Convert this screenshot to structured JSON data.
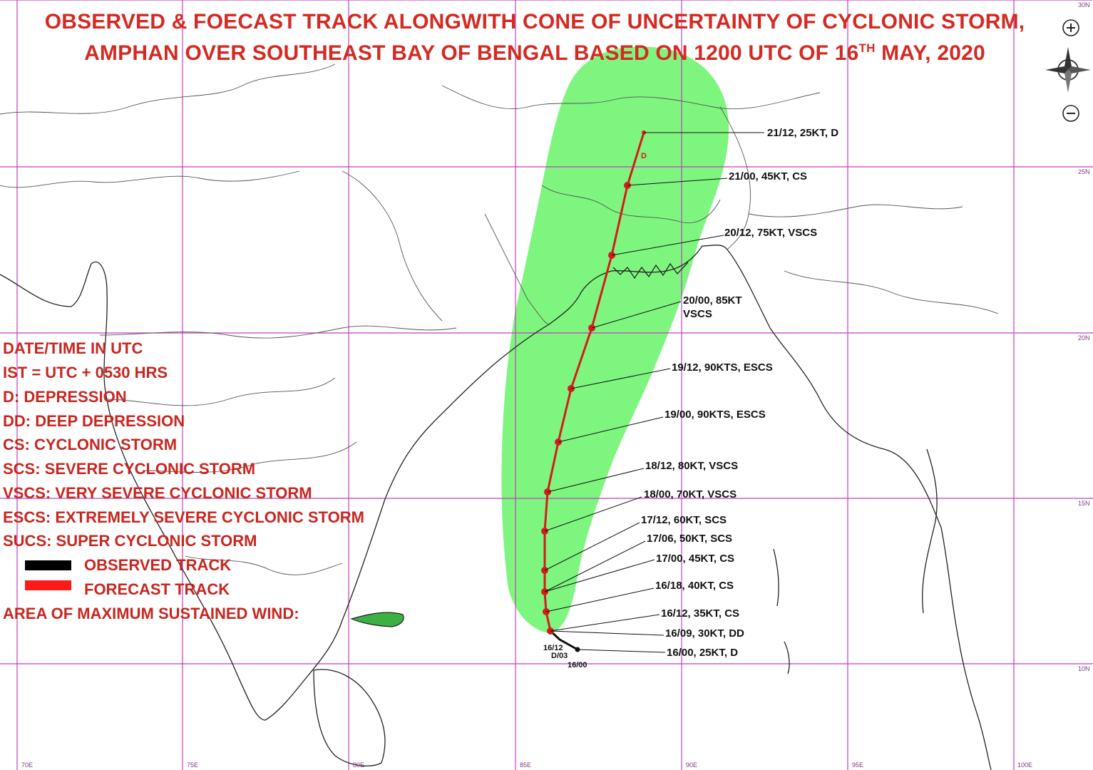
{
  "title": {
    "line1": "OBSERVED & FOECAST TRACK ALONGWITH CONE OF UNCERTAINTY OF CYCLONIC STORM,",
    "line2_pre": "AMPHAN OVER SOUTHEAST BAY OF BENGAL BASED ON 1200 UTC OF 16",
    "line2_sup": "TH",
    "line2_post": " MAY, 2020"
  },
  "legend": {
    "items": [
      "DATE/TIME IN UTC",
      "IST = UTC + 0530 HRS",
      "D: DEPRESSION",
      "DD: DEEP DEPRESSION",
      "CS: CYCLONIC STORM",
      "SCS: SEVERE CYCLONIC STORM",
      "VSCS: VERY SEVERE CYCLONIC STORM",
      "ESCS: EXTREMELY SEVERE CYCLONIC STORM",
      "SUCS: SUPER CYCLONIC STORM"
    ],
    "observed_label": "OBSERVED TRACK",
    "forecast_label": "FORECAST TRACK",
    "wind_area_label": "AREA OF MAXIMUM SUSTAINED WIND:",
    "observed_color": "#000000",
    "forecast_color": "#ff1a1a",
    "wind_color": "#3cb043"
  },
  "track_points": [
    "21/12, 25KT, D",
    "21/00, 45KT, CS",
    "20/12, 75KT, VSCS",
    "20/00, 85KT",
    "VSCS",
    "19/12, 90KTS, ESCS",
    "19/00, 90KTS, ESCS",
    "18/12, 80KT, VSCS",
    "18/00, 70KT, VSCS",
    "17/12, 60KT, SCS",
    "17/06, 50KT, SCS",
    "17/00, 45KT, CS",
    "16/18, 40KT, CS",
    "16/12, 35KT, CS",
    "16/09, 30KT, DD",
    "16/00, 25KT, D"
  ],
  "observed_labels": {
    "a": "16/12",
    "b": "D/03",
    "c": "16/00",
    "d": "D"
  },
  "grid_labels": {
    "lat": [
      "30N",
      "25N",
      "20N",
      "15N",
      "10N"
    ],
    "lon": [
      "70E",
      "75E",
      "80E",
      "85E",
      "90E",
      "95E",
      "100E"
    ]
  },
  "colors": {
    "title": "#d42a22",
    "cone": "#7ef57e",
    "grid": "#c040c0",
    "track": "#d41c1c"
  },
  "icons": {
    "zoom_in": "plus-circle-icon",
    "compass": "compass-icon",
    "zoom_out": "minus-circle-icon"
  }
}
